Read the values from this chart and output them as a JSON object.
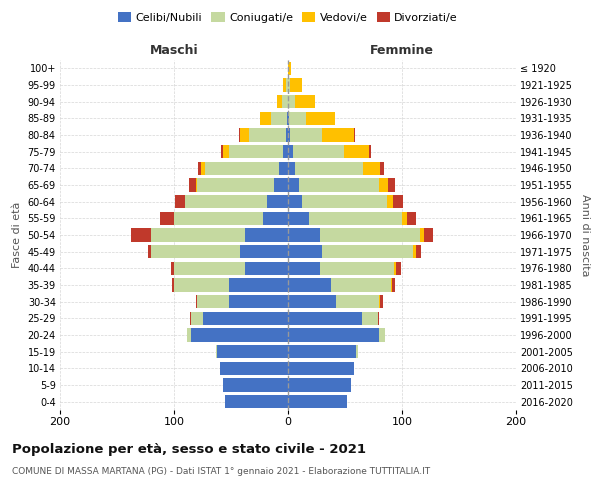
{
  "age_groups": [
    "0-4",
    "5-9",
    "10-14",
    "15-19",
    "20-24",
    "25-29",
    "30-34",
    "35-39",
    "40-44",
    "45-49",
    "50-54",
    "55-59",
    "60-64",
    "65-69",
    "70-74",
    "75-79",
    "80-84",
    "85-89",
    "90-94",
    "95-99",
    "100+"
  ],
  "birth_years": [
    "2016-2020",
    "2011-2015",
    "2006-2010",
    "2001-2005",
    "1996-2000",
    "1991-1995",
    "1986-1990",
    "1981-1985",
    "1976-1980",
    "1971-1975",
    "1966-1970",
    "1961-1965",
    "1956-1960",
    "1951-1955",
    "1946-1950",
    "1941-1945",
    "1936-1940",
    "1931-1935",
    "1926-1930",
    "1921-1925",
    "≤ 1920"
  ],
  "male": {
    "celibi": [
      55,
      57,
      60,
      62,
      85,
      75,
      52,
      52,
      38,
      42,
      38,
      22,
      18,
      12,
      8,
      4,
      2,
      1,
      0,
      0,
      0
    ],
    "coniugati": [
      0,
      0,
      0,
      1,
      4,
      10,
      28,
      48,
      62,
      78,
      82,
      78,
      72,
      68,
      65,
      48,
      32,
      14,
      5,
      2,
      0
    ],
    "vedovi": [
      0,
      0,
      0,
      0,
      0,
      0,
      0,
      0,
      0,
      0,
      0,
      0,
      0,
      1,
      3,
      5,
      8,
      10,
      5,
      2,
      0
    ],
    "divorziati": [
      0,
      0,
      0,
      0,
      0,
      1,
      1,
      2,
      3,
      3,
      18,
      12,
      9,
      6,
      3,
      2,
      1,
      0,
      0,
      0,
      0
    ]
  },
  "female": {
    "nubili": [
      52,
      55,
      58,
      60,
      80,
      65,
      42,
      38,
      28,
      30,
      28,
      18,
      12,
      10,
      6,
      4,
      2,
      1,
      0,
      0,
      0
    ],
    "coniugate": [
      0,
      0,
      0,
      1,
      5,
      14,
      38,
      52,
      65,
      80,
      88,
      82,
      75,
      70,
      60,
      45,
      28,
      15,
      6,
      2,
      0
    ],
    "vedove": [
      0,
      0,
      0,
      0,
      0,
      0,
      1,
      1,
      2,
      2,
      3,
      4,
      5,
      8,
      15,
      22,
      28,
      25,
      18,
      10,
      3
    ],
    "divorziate": [
      0,
      0,
      0,
      0,
      0,
      1,
      2,
      3,
      4,
      5,
      8,
      8,
      9,
      6,
      3,
      2,
      1,
      0,
      0,
      0,
      0
    ]
  },
  "colors": {
    "celibi": "#4472c4",
    "coniugati": "#c5d9a0",
    "vedovi": "#ffc000",
    "divorziati": "#c0392b"
  },
  "xlim": 200,
  "title": "Popolazione per età, sesso e stato civile - 2021",
  "subtitle": "COMUNE DI MASSA MARTANA (PG) - Dati ISTAT 1° gennaio 2021 - Elaborazione TUTTITALIA.IT",
  "xlabel_left": "Maschi",
  "xlabel_right": "Femmine",
  "ylabel_left": "Fasce di età",
  "ylabel_right": "Anni di nascita"
}
